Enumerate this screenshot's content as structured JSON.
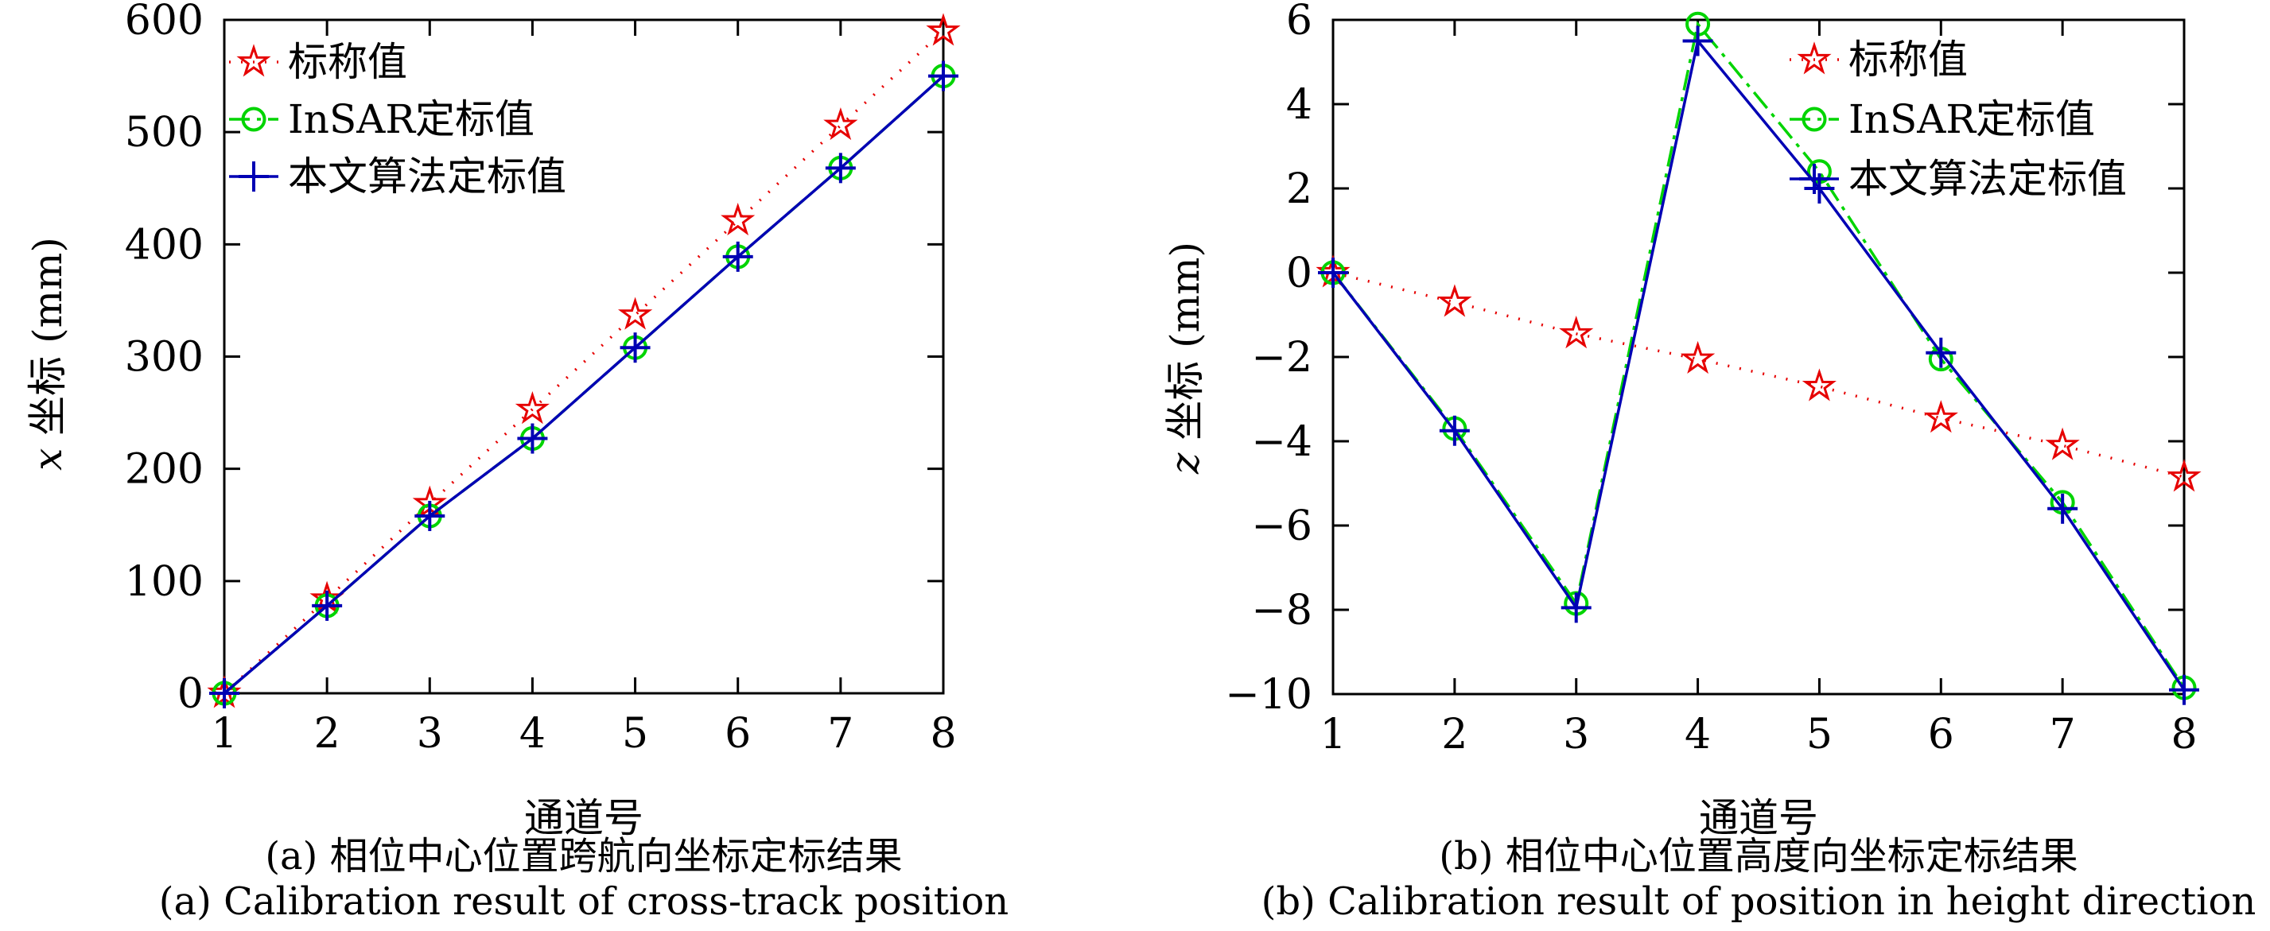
{
  "figures": [
    {
      "id": "a",
      "xlabel": "通道号",
      "ylabel_var": "x",
      "ylabel_rest": " 坐标 (mm)",
      "caption_cn": "(a) 相位中心位置跨航向坐标定标结果",
      "caption_en": "(a) Calibration result of cross-track position"
    },
    {
      "id": "b",
      "xlabel": "通道号",
      "ylabel_var": "z",
      "ylabel_rest": " 坐标 (mm)",
      "caption_cn": "(b) 相位中心位置高度向坐标定标结果",
      "caption_en": "(b) Calibration result of position in height direction"
    }
  ],
  "chart_data": [
    {
      "type": "line",
      "title": "",
      "xlabel": "通道号",
      "ylabel": "x 坐标 (mm)",
      "x": [
        1,
        2,
        3,
        4,
        5,
        6,
        7,
        8
      ],
      "xlim": [
        1,
        8
      ],
      "ylim": [
        0,
        600
      ],
      "xticks": [
        1,
        2,
        3,
        4,
        5,
        6,
        7,
        8
      ],
      "yticks": [
        0,
        100,
        200,
        300,
        400,
        500,
        600
      ],
      "grid": false,
      "legend_position": "top-left",
      "series": [
        {
          "name": "标称值",
          "color": "#e60000",
          "line": "dotted",
          "marker": "star",
          "values": [
            0,
            84,
            169,
            253,
            337,
            421,
            506,
            590
          ]
        },
        {
          "name": "InSAR定标值",
          "color": "#00d400",
          "line": "dashdot",
          "marker": "circle",
          "values": [
            0,
            78,
            158,
            227,
            308,
            389,
            468,
            550
          ]
        },
        {
          "name": "本文算法定标值",
          "color": "#0000b4",
          "line": "solid",
          "marker": "plus",
          "values": [
            0,
            78,
            158,
            227,
            308,
            389,
            468,
            550
          ]
        }
      ]
    },
    {
      "type": "line",
      "title": "",
      "xlabel": "通道号",
      "ylabel": "z 坐标 (mm)",
      "x": [
        1,
        2,
        3,
        4,
        5,
        6,
        7,
        8
      ],
      "xlim": [
        1,
        8
      ],
      "ylim": [
        -10,
        6
      ],
      "xticks": [
        1,
        2,
        3,
        4,
        5,
        6,
        7,
        8
      ],
      "yticks": [
        -10,
        -8,
        -6,
        -4,
        -2,
        0,
        2,
        4,
        6
      ],
      "grid": false,
      "legend_position": "top-right",
      "series": [
        {
          "name": "标称值",
          "color": "#e60000",
          "line": "dotted",
          "marker": "star",
          "values": [
            0,
            -0.7,
            -1.45,
            -2.05,
            -2.7,
            -3.45,
            -4.1,
            -4.85
          ]
        },
        {
          "name": "InSAR定标值",
          "color": "#00d400",
          "line": "dashdot",
          "marker": "circle",
          "values": [
            0,
            -3.7,
            -7.85,
            5.9,
            2.4,
            -2.05,
            -5.45,
            -9.85
          ]
        },
        {
          "name": "本文算法定标值",
          "color": "#0000b4",
          "line": "solid",
          "marker": "plus",
          "values": [
            0,
            -3.75,
            -7.95,
            5.5,
            2.0,
            -1.9,
            -5.6,
            -9.9
          ]
        }
      ]
    }
  ]
}
